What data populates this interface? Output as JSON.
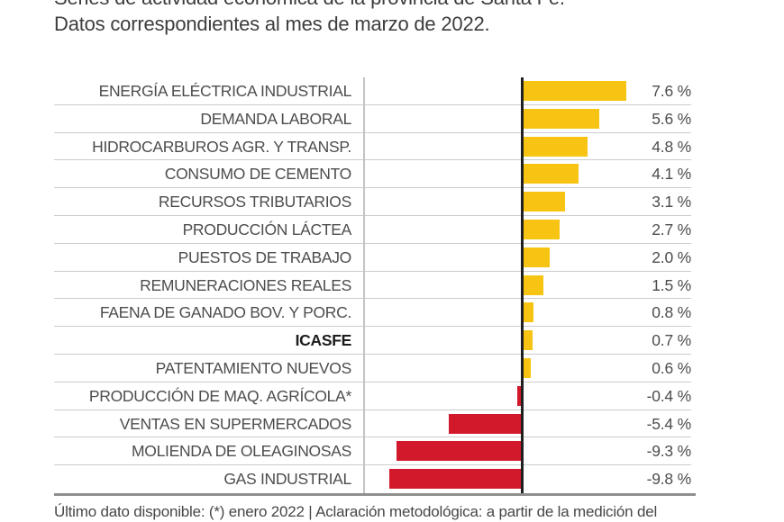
{
  "title": {
    "line1": "Series de actividad económica de la provincia de Santa Fe.",
    "line2": "Datos correspondientes al mes de marzo de 2022."
  },
  "footer": "Último dato disponible: (*) enero 2022 | Aclaración metodológica: a partir de la medición del",
  "colors": {
    "positive_bar": "#F7C413",
    "negative_bar": "#D2192B",
    "zero_line": "#202020",
    "grid_line": "#cccccc",
    "text": "#4d4d4d"
  },
  "chart_data": {
    "type": "bar",
    "orientation": "horizontal",
    "unit": "%",
    "categories": [
      "ENERGÍA ELÉCTRICA INDUSTRIAL",
      "DEMANDA LABORAL",
      "HIDROCARBUROS AGR. Y TRANSP.",
      "CONSUMO DE CEMENTO",
      "RECURSOS TRIBUTARIOS",
      "PRODUCCIÓN LÁCTEA",
      "PUESTOS DE TRABAJO",
      "REMUNERACIONES REALES",
      "FAENA DE GANADO BOV. Y PORC.",
      "ICASFE",
      "PATENTAMIENTO NUEVOS",
      "PRODUCCIÓN DE MAQ. AGRÍCOLA*",
      "VENTAS EN SUPERMERCADOS",
      "MOLIENDA DE OLEAGINOSAS",
      "GAS INDUSTRIAL"
    ],
    "values": [
      7.6,
      5.6,
      4.8,
      4.1,
      3.1,
      2.7,
      2.0,
      1.5,
      0.8,
      0.7,
      0.6,
      -0.4,
      -5.4,
      -9.3,
      -9.8
    ],
    "display_values": [
      "7.6 %",
      "5.6 %",
      "4.8 %",
      "4.1 %",
      "3.1 %",
      "2.7 %",
      "2.0 %",
      "1.5 %",
      "0.8 %",
      "0.7 %",
      "0.6 %",
      "-0.4 %",
      "-5.4 %",
      "-9.3 %",
      "-9.8 %"
    ],
    "highlight_category": "ICASFE",
    "xlim": [
      -11.7,
      12.3
    ],
    "grid": "horizontal-row-separators",
    "legend": "none"
  }
}
